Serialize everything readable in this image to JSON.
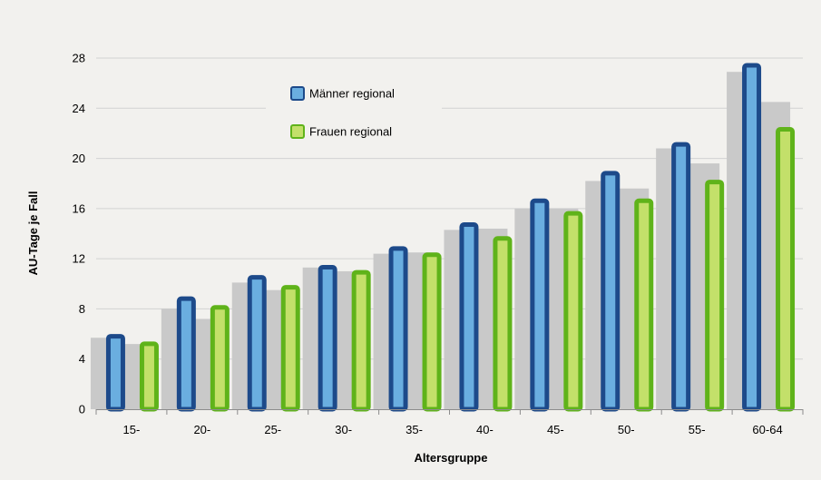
{
  "chart_data": {
    "type": "bar",
    "xlabel": "Altersgruppe",
    "ylabel": "AU-Tage je Fall",
    "ylim": [
      0,
      28
    ],
    "yticks": [
      0,
      4,
      8,
      12,
      16,
      20,
      24,
      28
    ],
    "grid": true,
    "legend_position": "top-left",
    "categories": [
      "15-",
      "20-",
      "25-",
      "30-",
      "35-",
      "40-",
      "45-",
      "50-",
      "55-",
      "60-64"
    ],
    "series": [
      {
        "name": "Männer regional",
        "values": [
          6.0,
          9.0,
          10.7,
          11.5,
          13.0,
          14.9,
          16.8,
          19.0,
          21.3,
          27.6
        ],
        "fill": "#6aaee0",
        "stroke": "#1d4a8a"
      },
      {
        "name": "Frauen regional",
        "values": [
          5.4,
          8.3,
          9.9,
          11.1,
          12.5,
          13.8,
          15.8,
          16.8,
          18.3,
          22.5
        ],
        "fill": "#c3e06a",
        "stroke": "#5fb31a"
      }
    ],
    "background_series": [
      {
        "values": [
          5.7,
          8.0,
          10.1,
          11.3,
          12.4,
          14.3,
          16.0,
          18.2,
          20.8,
          26.9
        ],
        "fill": "#c9c9c9"
      },
      {
        "values": [
          5.2,
          7.2,
          9.5,
          11.0,
          12.5,
          14.4,
          16.0,
          17.6,
          19.6,
          24.5
        ],
        "fill": "#c9c9c9"
      }
    ]
  }
}
